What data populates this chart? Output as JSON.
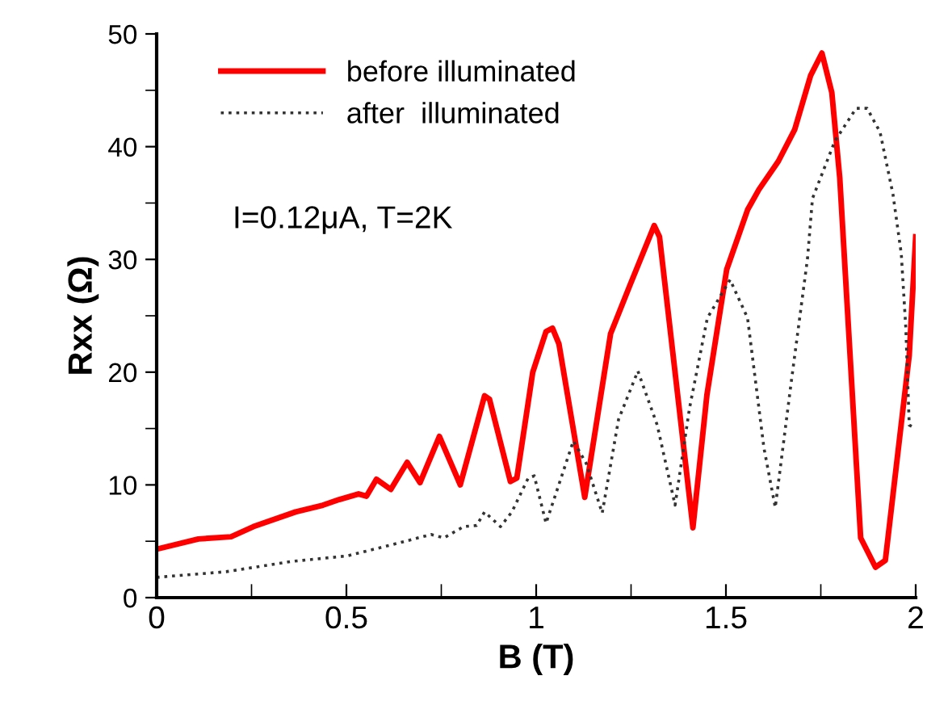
{
  "chart_data": {
    "type": "line",
    "xlabel": "B (T)",
    "ylabel": "Rxx (Ω)",
    "xlim": [
      0,
      2
    ],
    "xticks": [
      0,
      0.5,
      1,
      1.5,
      2
    ],
    "ylim": [
      0,
      50
    ],
    "yticks": [
      0,
      10,
      20,
      30,
      40,
      50
    ],
    "grid": false,
    "legend": "top left",
    "annotations": [
      "I=0.12μA, T=2K"
    ],
    "series": [
      {
        "name": "before illuminated",
        "color": "#ff0000",
        "line_style": "solid",
        "x": [
          0,
          0.11,
          0.196,
          0.255,
          0.366,
          0.438,
          0.481,
          0.532,
          0.553,
          0.579,
          0.617,
          0.66,
          0.694,
          0.745,
          0.8,
          0.864,
          0.877,
          0.932,
          0.949,
          0.991,
          1.026,
          1.043,
          1.06,
          1.128,
          1.196,
          1.247,
          1.311,
          1.325,
          1.413,
          1.45,
          1.502,
          1.557,
          1.587,
          1.638,
          1.681,
          1.723,
          1.753,
          1.779,
          1.8,
          1.855,
          1.894,
          1.92,
          1.983,
          2
        ],
        "values": [
          4.3,
          5.2,
          5.4,
          6.3,
          7.6,
          8.2,
          8.7,
          9.2,
          9.0,
          10.5,
          9.6,
          12.0,
          10.2,
          14.3,
          10.0,
          17.9,
          17.6,
          10.3,
          10.6,
          20,
          23.6,
          23.9,
          22.5,
          8.9,
          23.4,
          27.7,
          33,
          32,
          6.2,
          18,
          29.1,
          34.4,
          36.2,
          38.7,
          41.5,
          46.3,
          48.3,
          44.8,
          37.2,
          5.3,
          2.7,
          3.3,
          21.5,
          32
        ]
      },
      {
        "name": "after  illuminated",
        "color": "#333333",
        "line_style": "dotted",
        "x": [
          0.0,
          0.183,
          0.353,
          0.502,
          0.621,
          0.723,
          0.757,
          0.809,
          0.843,
          0.864,
          0.906,
          0.936,
          0.979,
          0.995,
          1.026,
          1.098,
          1.132,
          1.174,
          1.217,
          1.268,
          1.319,
          1.366,
          1.404,
          1.451,
          1.511,
          1.557,
          1.6,
          1.63,
          1.672,
          1.715,
          1.728,
          1.787,
          1.843,
          1.872,
          1.906,
          1.94,
          1.962,
          1.974,
          1.983,
          2
        ],
        "values": [
          1.8,
          2.3,
          3.2,
          3.7,
          4.7,
          5.6,
          5.3,
          6.3,
          6.4,
          7.6,
          6.3,
          7.6,
          10.6,
          10.8,
          6.6,
          13.9,
          11.9,
          7.5,
          15.8,
          20.1,
          15.3,
          8.2,
          16.8,
          24.8,
          28.2,
          24.8,
          13.3,
          8.0,
          19.1,
          30.1,
          35.4,
          40.5,
          43.4,
          43.4,
          41.3,
          35.8,
          30.5,
          23.9,
          15.3,
          15
        ]
      }
    ]
  }
}
